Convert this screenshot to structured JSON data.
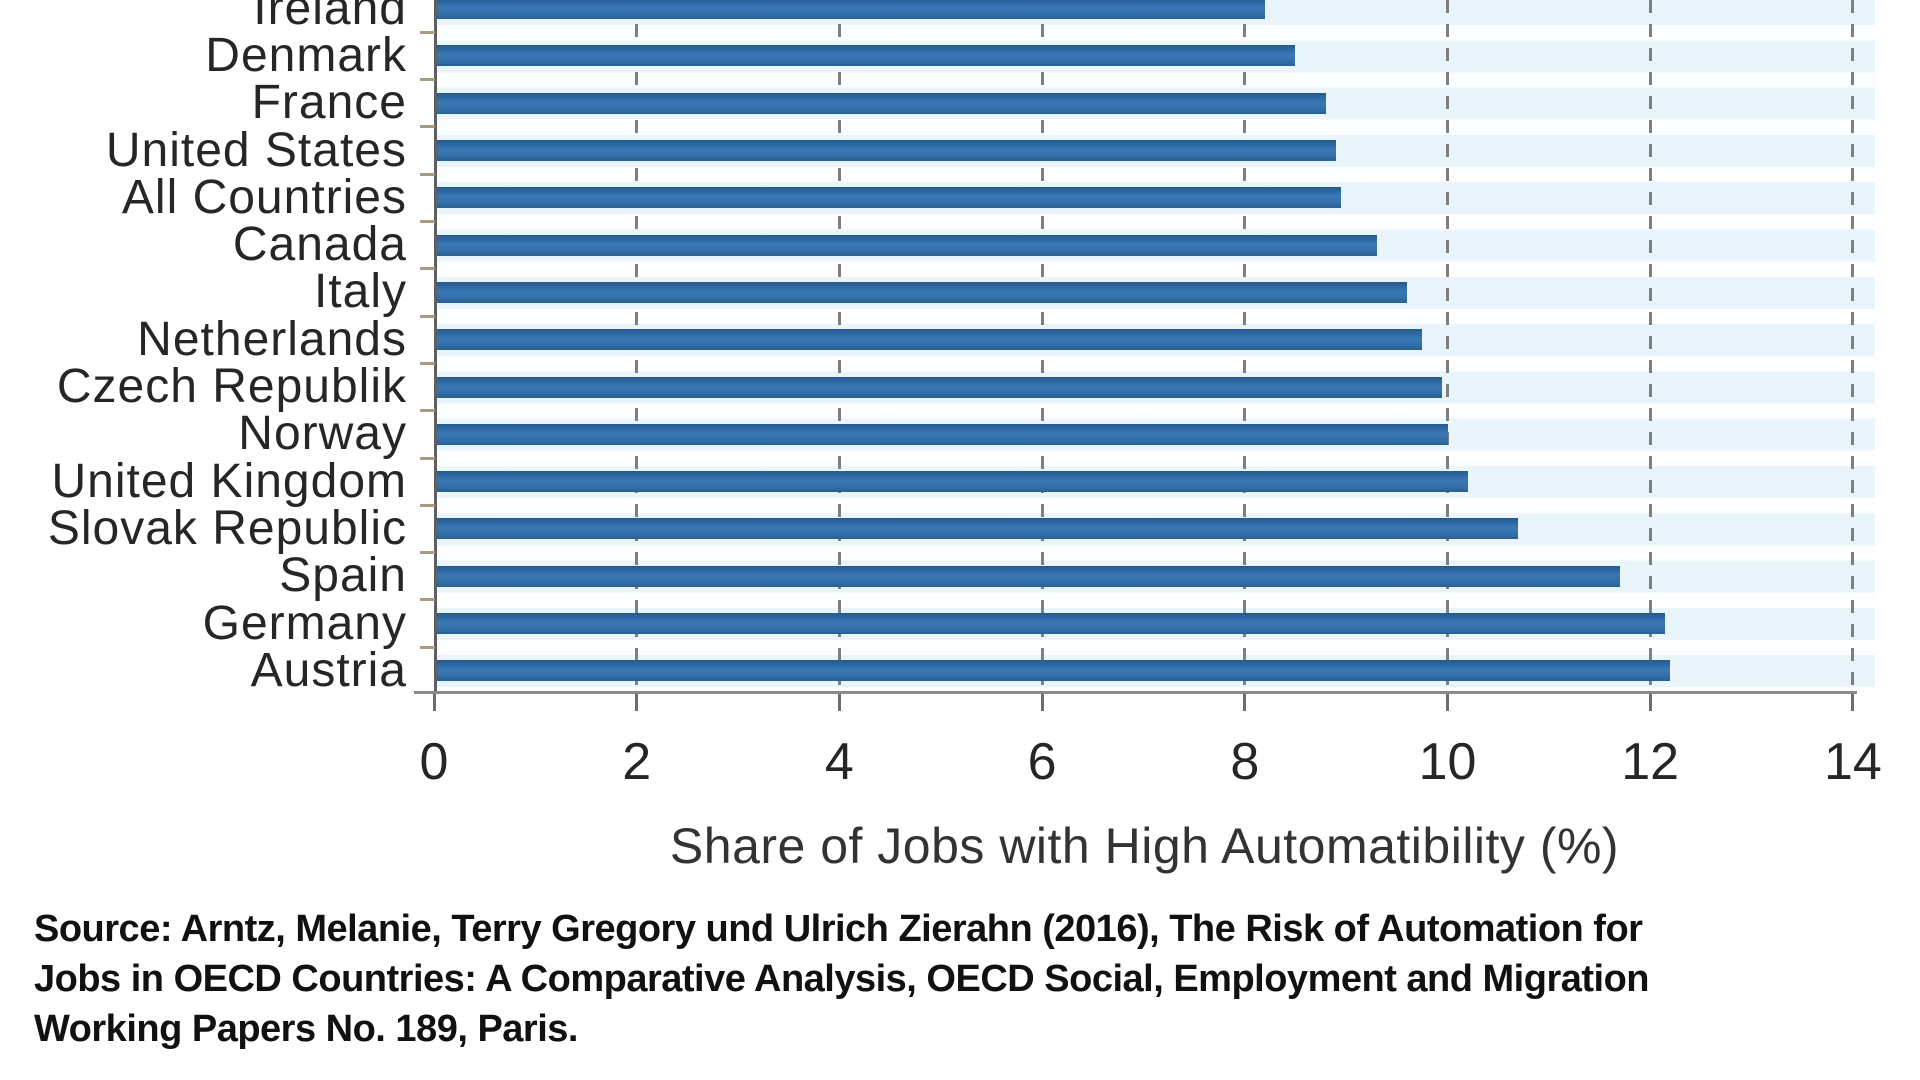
{
  "chart_data": {
    "type": "bar",
    "orientation": "horizontal",
    "title": "",
    "xlabel": "Share of Jobs with High Automatibility (%)",
    "ylabel": "",
    "xlim": [
      0,
      14
    ],
    "xticks": [
      0,
      2,
      4,
      6,
      8,
      10,
      12,
      14
    ],
    "grid": "vertical dashed gridlines at each x tick (2 through 14)",
    "legend": "none",
    "cropped_top": true,
    "categories": [
      "Ireland",
      "Denmark",
      "France",
      "United States",
      "All Countries",
      "Canada",
      "Italy",
      "Netherlands",
      "Czech Republik",
      "Norway",
      "United Kingdom",
      "Slovak Republic",
      "Spain",
      "Germany",
      "Austria"
    ],
    "values": [
      8.2,
      8.5,
      8.8,
      8.9,
      8.95,
      9.3,
      9.6,
      9.75,
      9.95,
      10.0,
      10.2,
      10.7,
      11.7,
      12.15,
      12.2
    ],
    "bar_color": "#2e6ba8",
    "bar_edge_color": "#235a8a",
    "stripe_color": "#e9f4fb",
    "gridline_color": "#7f7f7f",
    "axis_color": "#6e6e6e",
    "text_color": "#262626"
  },
  "source": {
    "lines": [
      "Source: Arntz, Melanie, Terry Gregory und Ulrich Zierahn (2016), The Risk of Automation for",
      "Jobs in OECD Countries: A Comparative Analysis, OECD Social, Employment and Migration",
      "Working Papers No. 189, Paris."
    ]
  }
}
